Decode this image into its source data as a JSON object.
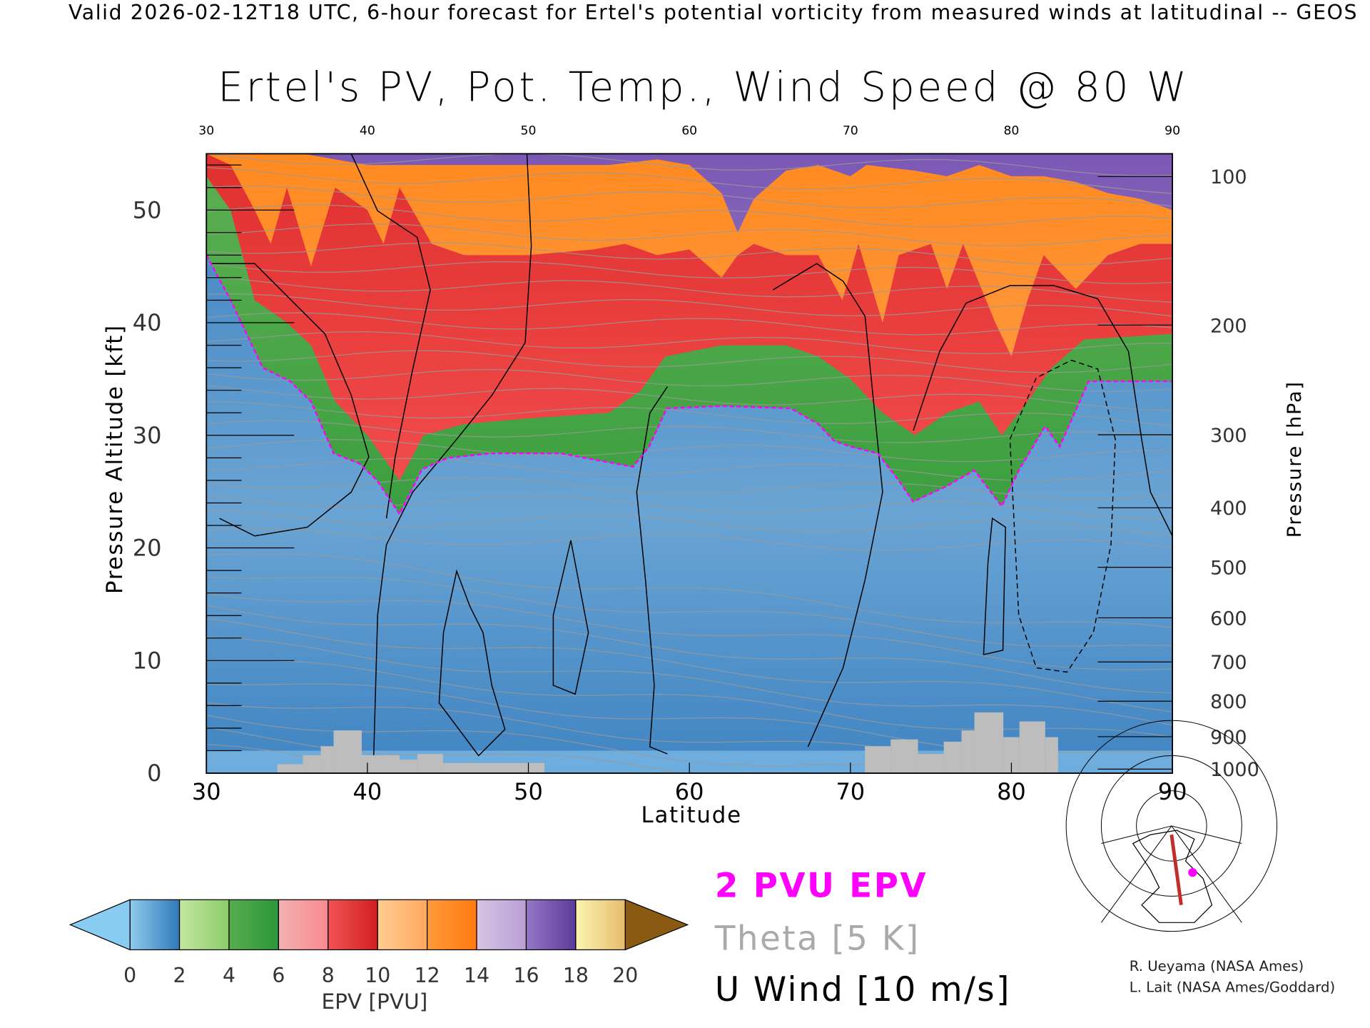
{
  "header": "Valid 2026-02-12T18 UTC, 6-hour forecast for Ertel's potential vorticity from measured winds at latitudinal -- GEOS",
  "legend": {
    "pv_label": "2 PVU EPV",
    "theta_label": "Theta [5 K]",
    "wind_label": "U Wind [10 m/s]",
    "pv_color": "#ff00ff",
    "theta_color": "#aaaaaa",
    "wind_color": "#000000"
  },
  "colorbar": {
    "label": "EPV [PVU]",
    "ticks": [
      "0",
      "2",
      "4",
      "6",
      "8",
      "10",
      "12",
      "14",
      "16",
      "18",
      "20"
    ],
    "segments": [
      [
        "#8fcbee",
        "#2f79b9"
      ],
      [
        "#c4e6a0",
        "#8ccc6c"
      ],
      [
        "#56ae4e",
        "#2c963a"
      ],
      [
        "#f4b0b0",
        "#f88a90"
      ],
      [
        "#f05454",
        "#d21e22"
      ],
      [
        "#ffcc90",
        "#ffa860"
      ],
      [
        "#ff9a3a",
        "#ff7a10"
      ],
      [
        "#d8c4e4",
        "#b8a0d6"
      ],
      [
        "#9478c4",
        "#5c3a9c"
      ],
      [
        "#fbf4b0",
        "#e6bc6c"
      ]
    ],
    "under_color": "#88ccf2",
    "over_color": "#8a5a12"
  },
  "credits": [
    "R. Ueyama (NASA Ames)",
    "L. Lait (NASA Ames/Goddard)"
  ],
  "chart_data": {
    "type": "heatmap",
    "title": "Ertel's PV, Pot. Temp., Wind Speed @ 80 W",
    "xlabel": "Latitude",
    "ylabel": "Pressure Altitude [kft]",
    "ylabel_right": "Pressure [hPa]",
    "xlim": [
      30,
      90
    ],
    "ylim": [
      0,
      55
    ],
    "x_ticks": [
      "30",
      "40",
      "50",
      "60",
      "70",
      "80",
      "90"
    ],
    "x_tick_values": [
      30,
      40,
      50,
      60,
      70,
      80,
      90
    ],
    "y_ticks": [
      "0",
      "10",
      "20",
      "30",
      "40",
      "50"
    ],
    "y_tick_values": [
      0,
      10,
      20,
      30,
      40,
      50
    ],
    "pressure_ticks": [
      "100",
      "200",
      "300",
      "400",
      "500",
      "600",
      "700",
      "800",
      "900",
      "1000"
    ],
    "pressure_values": [
      100,
      200,
      300,
      400,
      500,
      600,
      700,
      800,
      900,
      1000
    ],
    "tropopause_2pvu": [
      [
        30,
        46
      ],
      [
        31.5,
        42
      ],
      [
        33.5,
        36
      ],
      [
        35.2,
        34.8
      ],
      [
        36.5,
        33
      ],
      [
        37.9,
        28.4
      ],
      [
        39.5,
        27.5
      ],
      [
        40.6,
        26
      ],
      [
        42,
        23
      ],
      [
        43.4,
        27
      ],
      [
        45,
        28
      ],
      [
        47.7,
        28.4
      ],
      [
        52,
        28.4
      ],
      [
        56.5,
        27.2
      ],
      [
        57.5,
        29
      ],
      [
        58.6,
        32.4
      ],
      [
        62,
        32.6
      ],
      [
        66.3,
        32.4
      ],
      [
        68,
        31
      ],
      [
        69,
        29.5
      ],
      [
        70,
        29
      ],
      [
        71.7,
        28.4
      ],
      [
        73,
        26
      ],
      [
        73.9,
        24.1
      ],
      [
        76,
        25.5
      ],
      [
        77.7,
        26.9
      ],
      [
        79.4,
        23.7
      ],
      [
        80.5,
        27
      ],
      [
        82.1,
        30.8
      ],
      [
        83,
        29
      ],
      [
        84.8,
        34.8
      ],
      [
        90,
        34.8
      ]
    ],
    "green_top_4pvu": [
      [
        30,
        53
      ],
      [
        31.5,
        50
      ],
      [
        33,
        42
      ],
      [
        35,
        40
      ],
      [
        36.5,
        38
      ],
      [
        38,
        33
      ],
      [
        40,
        30
      ],
      [
        42,
        26
      ],
      [
        43.5,
        30
      ],
      [
        46,
        31
      ],
      [
        50,
        31.5
      ],
      [
        55,
        32
      ],
      [
        57,
        34
      ],
      [
        58.5,
        37
      ],
      [
        62,
        38
      ],
      [
        66,
        38
      ],
      [
        68,
        37
      ],
      [
        70,
        35
      ],
      [
        72,
        32
      ],
      [
        74,
        30
      ],
      [
        76,
        32
      ],
      [
        78,
        33
      ],
      [
        79.4,
        30
      ],
      [
        81,
        33
      ],
      [
        82.5,
        36
      ],
      [
        84.5,
        38.5
      ],
      [
        90,
        39
      ]
    ],
    "red_top_10pvu": [
      [
        30,
        55
      ],
      [
        31.5,
        54
      ],
      [
        33,
        50
      ],
      [
        34,
        47
      ],
      [
        35,
        52
      ],
      [
        36.5,
        45
      ],
      [
        38,
        52
      ],
      [
        40,
        50
      ],
      [
        41,
        47
      ],
      [
        42,
        52
      ],
      [
        44,
        47
      ],
      [
        46,
        46
      ],
      [
        50,
        46
      ],
      [
        54,
        46.5
      ],
      [
        56,
        47
      ],
      [
        58,
        46
      ],
      [
        60,
        46.5
      ],
      [
        62,
        44
      ],
      [
        63,
        46
      ],
      [
        64,
        47
      ],
      [
        66,
        46
      ],
      [
        68,
        46
      ],
      [
        69.5,
        42
      ],
      [
        70.5,
        47
      ],
      [
        72,
        40
      ],
      [
        73,
        46
      ],
      [
        75,
        47
      ],
      [
        76,
        43
      ],
      [
        77,
        47
      ],
      [
        79,
        40
      ],
      [
        80,
        37
      ],
      [
        81,
        42
      ],
      [
        82,
        46
      ],
      [
        84,
        43
      ],
      [
        86,
        46
      ],
      [
        88,
        47
      ],
      [
        90,
        47
      ]
    ],
    "orange_top_14pvu": [
      [
        30,
        55
      ],
      [
        34,
        55
      ],
      [
        36,
        55
      ],
      [
        40,
        54
      ],
      [
        45,
        54
      ],
      [
        50,
        54
      ],
      [
        55,
        54
      ],
      [
        58,
        54.5
      ],
      [
        60,
        54
      ],
      [
        62,
        51.5
      ],
      [
        63,
        48
      ],
      [
        64,
        51
      ],
      [
        66,
        53.5
      ],
      [
        68,
        54
      ],
      [
        70,
        53
      ],
      [
        71,
        54
      ],
      [
        74,
        53.5
      ],
      [
        76,
        53
      ],
      [
        78,
        54
      ],
      [
        80,
        53
      ],
      [
        82,
        53
      ],
      [
        84,
        52.5
      ],
      [
        86,
        51.5
      ],
      [
        88,
        51
      ],
      [
        90,
        50
      ]
    ],
    "terrain_kft": [
      [
        34.4,
        36.0,
        0.8
      ],
      [
        36.0,
        37.1,
        1.6
      ],
      [
        37.1,
        37.9,
        2.4
      ],
      [
        37.9,
        39.65,
        3.8
      ],
      [
        39.65,
        42.0,
        1.6
      ],
      [
        42.0,
        43.1,
        1.2
      ],
      [
        43.1,
        44.7,
        1.7
      ],
      [
        44.7,
        51.0,
        0.9
      ],
      [
        70.9,
        72.5,
        2.4
      ],
      [
        72.5,
        74.2,
        3.0
      ],
      [
        74.2,
        75.8,
        1.7
      ],
      [
        75.8,
        76.9,
        2.8
      ],
      [
        76.9,
        77.7,
        3.8
      ],
      [
        77.7,
        79.5,
        5.4
      ],
      [
        79.5,
        80.5,
        3.2
      ],
      [
        80.5,
        82.1,
        4.6
      ],
      [
        82.1,
        82.9,
        3.2
      ]
    ]
  }
}
